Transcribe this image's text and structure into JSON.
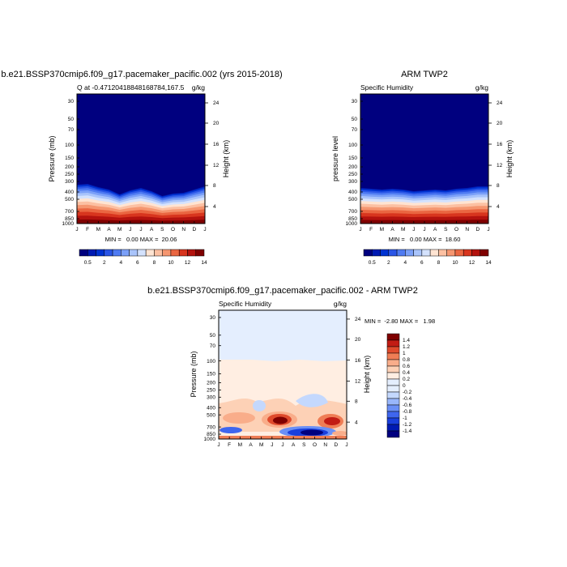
{
  "colors": {
    "cmap_q": [
      "#00007f",
      "#001ab3",
      "#0033d1",
      "#2a55e6",
      "#4f7bf2",
      "#7ba0f8",
      "#a9c4fb",
      "#d4e2fd",
      "#ffe4d2",
      "#fcc0a2",
      "#f59670",
      "#ea6641",
      "#d8351e",
      "#b3120e",
      "#7f0000"
    ],
    "cmap_d": [
      "#00007f",
      "#001ab3",
      "#1a3fdc",
      "#3f66ee",
      "#6a8ff6",
      "#98b6fb",
      "#c4d8fd",
      "#e4eefe",
      "#ffeee2",
      "#fdd1b6",
      "#f9ad8a",
      "#ef7d55",
      "#df4a2c",
      "#c21c14",
      "#7f0000"
    ]
  },
  "chart_data": [
    {
      "type": "heatmap",
      "title": "b.e21.BSSP370cmip6.f09_g17.pacemaker_pacific.002 (yrs 2015-2018)",
      "subtitle_left": "Q at -0.47120418848168784,167.5",
      "subtitle_right": "g/kg",
      "ylabel": "Pressure (mb)",
      "ylabel_right": "Height (km)",
      "x_ticks": [
        "J",
        "F",
        "M",
        "A",
        "M",
        "J",
        "J",
        "A",
        "S",
        "O",
        "N",
        "D",
        "J"
      ],
      "y_ticks": [
        "30",
        "50",
        "70",
        "100",
        "150",
        "200",
        "250",
        "300",
        "400",
        "500",
        "700",
        "850",
        "1000"
      ],
      "y_right_ticks": [
        "24",
        "20",
        "16",
        "12",
        "8",
        "4"
      ],
      "stats": "MIN =   0.00 MAX =  20.06",
      "colorbar_labels": [
        "0.5",
        "2",
        "4",
        "6",
        "8",
        "10",
        "12",
        "14"
      ]
    },
    {
      "type": "heatmap",
      "title": "ARM TWP2",
      "subtitle_left": "Specific Humidity",
      "subtitle_right": "g/kg",
      "ylabel": "pressure level",
      "ylabel_right": "Height (km)",
      "x_ticks": [
        "J",
        "F",
        "M",
        "A",
        "M",
        "J",
        "J",
        "A",
        "S",
        "O",
        "N",
        "D",
        "J"
      ],
      "y_ticks": [
        "30",
        "50",
        "70",
        "100",
        "150",
        "200",
        "250",
        "300",
        "400",
        "500",
        "700",
        "850",
        "1000"
      ],
      "y_right_ticks": [
        "24",
        "20",
        "16",
        "12",
        "8",
        "4"
      ],
      "stats": "MIN =   0.00 MAX =  18.60",
      "colorbar_labels": [
        "0.5",
        "2",
        "4",
        "6",
        "8",
        "10",
        "12",
        "14"
      ]
    },
    {
      "type": "heatmap",
      "title": "b.e21.BSSP370cmip6.f09_g17.pacemaker_pacific.002 - ARM TWP2",
      "subtitle_left": "Specific Humidity",
      "subtitle_right": "g/kg",
      "ylabel": "Pressure (mb)",
      "ylabel_right": "Height (km)",
      "x_ticks": [
        "J",
        "F",
        "M",
        "A",
        "M",
        "J",
        "J",
        "A",
        "S",
        "O",
        "N",
        "D",
        "J"
      ],
      "y_ticks": [
        "30",
        "50",
        "70",
        "100",
        "150",
        "200",
        "250",
        "300",
        "400",
        "500",
        "700",
        "850",
        "1000"
      ],
      "y_right_ticks": [
        "24",
        "20",
        "16",
        "12",
        "8",
        "4"
      ],
      "stats": "MIN =  -2.80 MAX =   1.98",
      "colorbar_labels": [
        "1.4",
        "1.2",
        "1",
        "0.8",
        "0.6",
        "0.4",
        "0.2",
        "0",
        "-0.2",
        "-0.4",
        "-0.6",
        "-0.8",
        "-1",
        "-1.2",
        "-1.4"
      ]
    }
  ]
}
